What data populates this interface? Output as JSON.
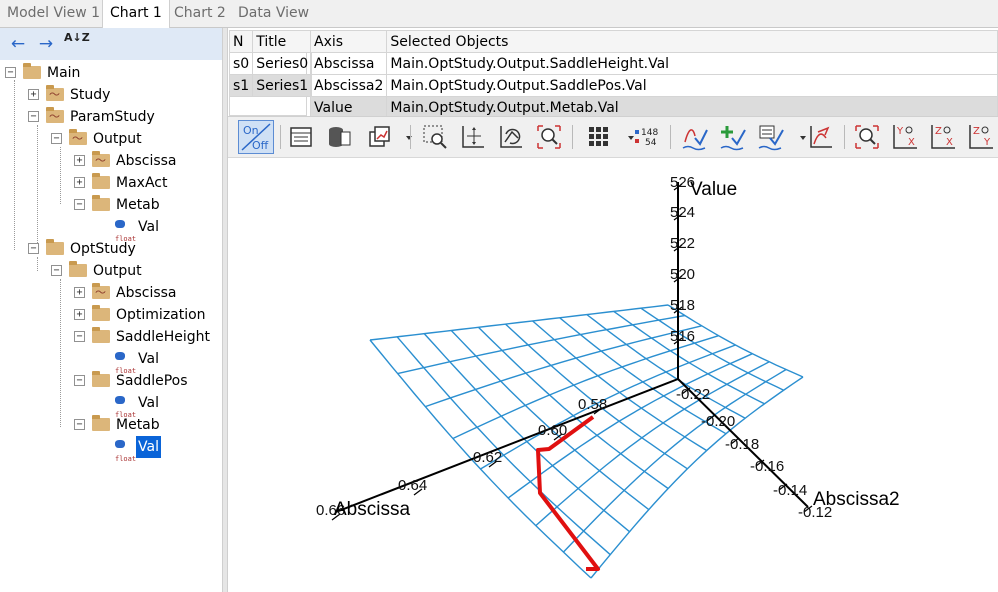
{
  "tabs": [
    "Model View 1",
    "Chart 1",
    "Chart 2",
    "Data View"
  ],
  "active_tab": "Chart 1",
  "tree_toolbar": {
    "back": "←",
    "forward": "→",
    "sort": "A↓Z"
  },
  "tree": {
    "main": "Main",
    "study": "Study",
    "paramstudy": "ParamStudy",
    "ps_output": "Output",
    "ps_abscissa": "Abscissa",
    "ps_maxact": "MaxAct",
    "ps_metab": "Metab",
    "ps_metab_val": "Val",
    "optstudy": "OptStudy",
    "os_output": "Output",
    "os_abscissa": "Abscissa",
    "os_optimization": "Optimization",
    "os_saddleheight": "SaddleHeight",
    "os_saddleheight_val": "Val",
    "os_saddlepos": "SaddlePos",
    "os_saddlepos_val": "Val",
    "os_metab": "Metab",
    "os_metab_val": "Val",
    "float_tag": "float"
  },
  "series_table": {
    "headers": [
      "N",
      "Title"
    ],
    "rows": [
      [
        "s0",
        "Series0"
      ],
      [
        "s1",
        "Series1"
      ]
    ]
  },
  "axis_table": {
    "headers": [
      "Axis",
      "Selected Objects"
    ],
    "rows": [
      [
        "Abscissa",
        "Main.OptStudy.Output.SaddleHeight.Val"
      ],
      [
        "Abscissa2",
        "Main.OptStudy.Output.SaddlePos.Val"
      ],
      [
        "Value",
        "Main.OptStudy.Output.Metab.Val"
      ]
    ]
  },
  "chart_toolbar": {
    "on": "On",
    "off": "Off",
    "counter_top": "148",
    "counter_bottom": "54"
  },
  "chart_data": {
    "type": "surface3d",
    "axes": {
      "value": {
        "label": "Value",
        "ticks": [
          "526",
          "524",
          "522",
          "520",
          "518",
          "516"
        ]
      },
      "abscissa": {
        "label": "Abscissa",
        "ticks": [
          "0.58",
          "0.60",
          "0.62",
          "0.64",
          "0.66"
        ]
      },
      "abscissa2": {
        "label": "Abscissa2",
        "ticks": [
          "-0.22",
          "-0.20",
          "-0.18",
          "-0.16",
          "-0.14",
          "-0.12"
        ]
      }
    },
    "surface_color": "#2b8fd0",
    "path_color": "#e01010",
    "axis_color": "#000000"
  }
}
